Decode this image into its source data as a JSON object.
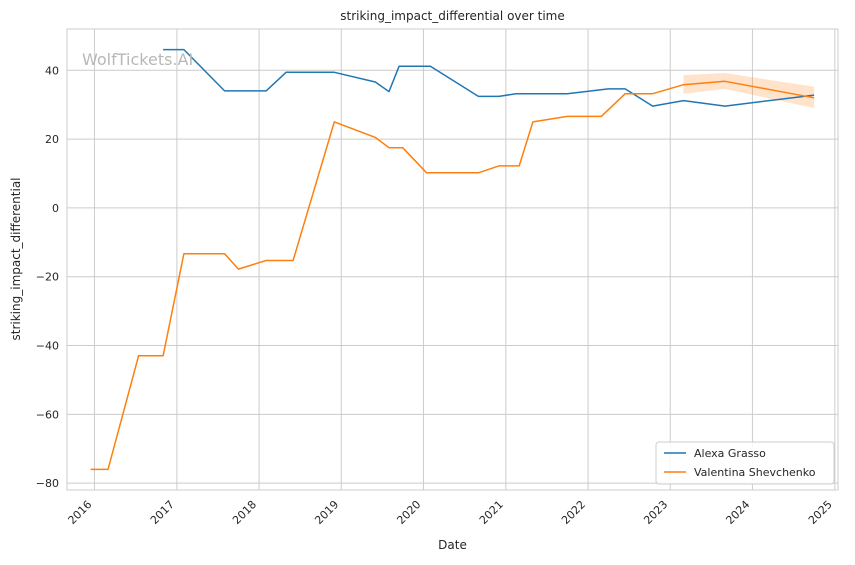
{
  "chart_data": {
    "type": "line",
    "title": "striking_impact_differential over time",
    "xlabel": "Date",
    "ylabel": "striking_impact_differential",
    "watermark": "WolfTickets.AI",
    "x_ticks": [
      "2016",
      "2017",
      "2018",
      "2019",
      "2020",
      "2021",
      "2022",
      "2023",
      "2024",
      "2025"
    ],
    "y_ticks": [
      "40",
      "20",
      "0",
      "−20",
      "−40",
      "−60",
      "−80"
    ],
    "xlim": [
      "2015-09-01",
      "2025-01-15"
    ],
    "ylim": [
      -82,
      52
    ],
    "grid": true,
    "legend_position": "lower-right",
    "series": [
      {
        "name": "Alexa Grasso",
        "color": "#1f77b4",
        "points": [
          [
            "2016-11-01",
            46
          ],
          [
            "2017-02-01",
            46
          ],
          [
            "2017-08-01",
            34
          ],
          [
            "2018-02-01",
            34
          ],
          [
            "2018-05-01",
            39.4
          ],
          [
            "2018-12-01",
            39.4
          ],
          [
            "2019-06-01",
            36.6
          ],
          [
            "2019-08-01",
            33.8
          ],
          [
            "2019-09-15",
            41.2
          ],
          [
            "2020-02-01",
            41.2
          ],
          [
            "2020-09-01",
            32.4
          ],
          [
            "2020-12-01",
            32.4
          ],
          [
            "2021-02-15",
            33.2
          ],
          [
            "2021-10-01",
            33.2
          ],
          [
            "2022-04-01",
            34.6
          ],
          [
            "2022-06-15",
            34.6
          ],
          [
            "2022-10-15",
            29.6
          ],
          [
            "2023-03-01",
            31.2
          ],
          [
            "2023-09-01",
            29.6
          ],
          [
            "2024-10-01",
            32.8
          ]
        ]
      },
      {
        "name": "Valentina Shevchenko",
        "color": "#ff7f0e",
        "points": [
          [
            "2015-12-15",
            -76
          ],
          [
            "2016-03-01",
            -76
          ],
          [
            "2016-07-15",
            -43
          ],
          [
            "2016-11-01",
            -43
          ],
          [
            "2017-02-01",
            -13.3
          ],
          [
            "2017-08-01",
            -13.3
          ],
          [
            "2017-10-01",
            -17.8
          ],
          [
            "2018-02-01",
            -15.3
          ],
          [
            "2018-06-01",
            -15.3
          ],
          [
            "2018-12-01",
            25
          ],
          [
            "2019-06-01",
            20.5
          ],
          [
            "2019-08-01",
            17.5
          ],
          [
            "2019-10-01",
            17.5
          ],
          [
            "2020-01-15",
            10.2
          ],
          [
            "2020-09-01",
            10.2
          ],
          [
            "2020-12-01",
            12.2
          ],
          [
            "2021-03-01",
            12.2
          ],
          [
            "2021-05-01",
            25
          ],
          [
            "2021-10-01",
            26.6
          ],
          [
            "2022-03-01",
            26.6
          ],
          [
            "2022-06-15",
            33.2
          ],
          [
            "2022-10-15",
            33.2
          ],
          [
            "2023-03-01",
            35.8
          ],
          [
            "2023-09-01",
            36.8
          ],
          [
            "2024-10-01",
            32
          ]
        ],
        "band": [
          [
            "2023-03-01",
            33.2,
            38.6
          ],
          [
            "2023-09-01",
            34.6,
            39.2
          ],
          [
            "2024-10-01",
            29,
            35.2
          ]
        ]
      }
    ]
  }
}
